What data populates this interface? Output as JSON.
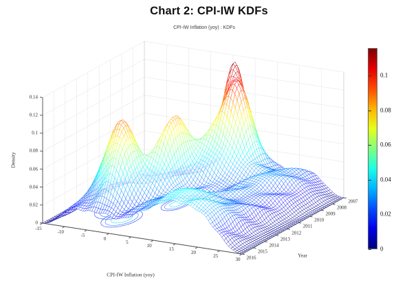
{
  "page": {
    "title": "Chart 2: CPI-IW KDFs"
  },
  "chart_data": {
    "type": "surface3d-mesh",
    "title": "CPI-IW Inflation (yoy) : KDFs",
    "xlabel": "CPI-IW Inflation (yoy)",
    "ylabel": "Year",
    "zlabel": "Density",
    "xlim": [
      -15,
      30
    ],
    "ylim": [
      2007,
      2016
    ],
    "zlim": [
      0,
      0.14
    ],
    "x_ticks": [
      -15,
      -10,
      -5,
      0,
      5,
      10,
      15,
      20,
      25,
      30
    ],
    "y_ticks": [
      2007,
      2008,
      2009,
      2010,
      2011,
      2012,
      2013,
      2014,
      2015,
      2016
    ],
    "z_ticks": [
      0,
      0.02,
      0.04,
      0.06,
      0.08,
      0.1,
      0.12,
      0.14
    ],
    "z_tick_labels": [
      "0",
      "0.02",
      "0.04",
      "0.06",
      "0.08",
      "0.1",
      "0.12",
      "0.14"
    ],
    "grid": true,
    "colormap": "jet",
    "colorbar": {
      "min": 0,
      "max": 0.116,
      "tick_values": [
        0,
        0.02,
        0.04,
        0.06,
        0.08,
        0.1
      ],
      "tick_labels": [
        "0",
        "0.02",
        "0.04",
        "0.06",
        "0.08",
        "0.1"
      ]
    },
    "surface": {
      "description": "Yearly kernel density functions of CPI-IW yoy inflation; density f(x,year) modeled as a sum of Gaussian modes plus low rolling ripple",
      "grid_nx": 90,
      "grid_ny": 54,
      "modes": [
        {
          "x": 6.0,
          "year": 2007.3,
          "sx": 1.7,
          "sy": 0.6,
          "height": 0.085
        },
        {
          "x": 9.5,
          "year": 2008.2,
          "sx": 2.4,
          "sy": 0.8,
          "height": 0.075
        },
        {
          "x": 7.0,
          "year": 2009.8,
          "sx": 2.6,
          "sy": 1.1,
          "height": 0.035
        },
        {
          "x": 2.5,
          "year": 2011.0,
          "sx": 1.6,
          "sy": 0.75,
          "height": 0.055
        },
        {
          "x": 3.2,
          "year": 2012.3,
          "sx": 2.2,
          "sy": 0.8,
          "height": 0.035
        },
        {
          "x": -6.0,
          "year": 2012.9,
          "sx": 2.6,
          "sy": 1.0,
          "height": 0.055
        },
        {
          "x": -2.5,
          "year": 2013.9,
          "sx": 2.2,
          "sy": 0.9,
          "height": 0.06
        },
        {
          "x": 0.5,
          "year": 2012.5,
          "sx": 5.5,
          "sy": 2.2,
          "height": 0.03
        },
        {
          "x": 8.0,
          "year": 2008.6,
          "sx": 5.0,
          "sy": 1.6,
          "height": 0.028
        },
        {
          "x": 14.0,
          "year": 2014.6,
          "sx": 4.0,
          "sy": 1.6,
          "height": 0.026
        },
        {
          "x": 21.0,
          "year": 2013.2,
          "sx": 4.5,
          "sy": 2.2,
          "height": 0.02
        },
        {
          "x": 17.0,
          "year": 2009.2,
          "sx": 5.0,
          "sy": 1.8,
          "height": 0.022
        },
        {
          "x": 24.0,
          "year": 2008.0,
          "sx": 4.0,
          "sy": 1.5,
          "height": 0.015
        },
        {
          "x": 10.0,
          "year": 2016.0,
          "sx": 5.0,
          "sy": 1.5,
          "height": 0.022
        },
        {
          "x": -8.0,
          "year": 2016.0,
          "sx": 4.0,
          "sy": 2.0,
          "height": 0.012
        },
        {
          "x": 20.0,
          "year": 2016.0,
          "sx": 4.0,
          "sy": 1.5,
          "height": 0.018
        }
      ],
      "ripple": {
        "amplitude": 0.003,
        "base": 0.004
      },
      "edge_taper_x": [
        3.0,
        3.5
      ]
    },
    "floor_contours": {
      "levels": [
        0.02,
        0.03,
        0.045,
        0.06,
        0.075
      ]
    }
  }
}
